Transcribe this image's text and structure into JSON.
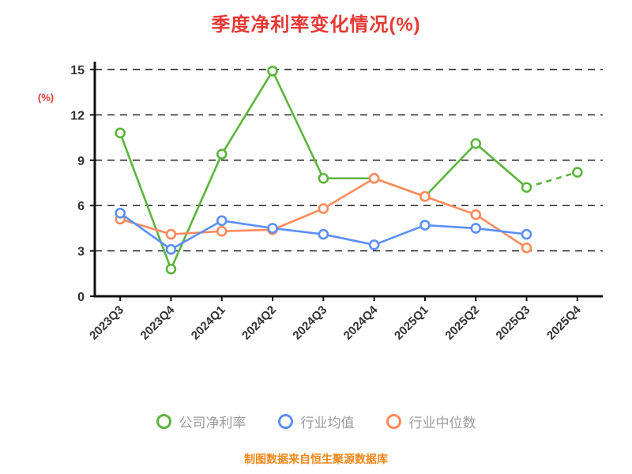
{
  "chart_data": {
    "type": "line",
    "title": "季度净利率变化情况(%)",
    "ylabel": "(%)",
    "xlabel": "",
    "categories": [
      "2023Q3",
      "2023Q4",
      "2024Q1",
      "2024Q2",
      "2024Q3",
      "2024Q4",
      "2025Q1",
      "2025Q2",
      "2025Q3",
      "2025Q4"
    ],
    "series": [
      {
        "name": "公司净利率",
        "color": "#5cb43c",
        "values": [
          10.8,
          1.8,
          9.4,
          14.9,
          7.8,
          7.8,
          6.6,
          10.1,
          7.2,
          8.2
        ],
        "last_segment_dashed": true
      },
      {
        "name": "行业均值",
        "color": "#5b8ff9",
        "values": [
          5.5,
          3.1,
          5.0,
          4.5,
          4.1,
          3.4,
          4.7,
          4.5,
          4.1,
          null
        ],
        "last_segment_dashed": false
      },
      {
        "name": "行业中位数",
        "color": "#ff8a5c",
        "values": [
          5.1,
          4.1,
          4.3,
          4.4,
          5.8,
          7.8,
          6.6,
          5.4,
          3.2,
          null
        ],
        "last_segment_dashed": false
      }
    ],
    "ylim": [
      0,
      15
    ],
    "yticks": [
      0,
      3,
      6,
      9,
      12,
      15
    ],
    "grid": "dashed-horizontal",
    "legend_position": "bottom"
  },
  "footer": {
    "note": "制图数据来自恒生聚源数据库"
  },
  "colors": {
    "title": "#e53935",
    "axis_unit_label": "#e53935",
    "axis_line": "#111111",
    "gridline": "#111111",
    "tick_text": "#333333",
    "legend_text": "#999999",
    "footer": "#f0871a",
    "marker_fill": "#ffffff"
  }
}
